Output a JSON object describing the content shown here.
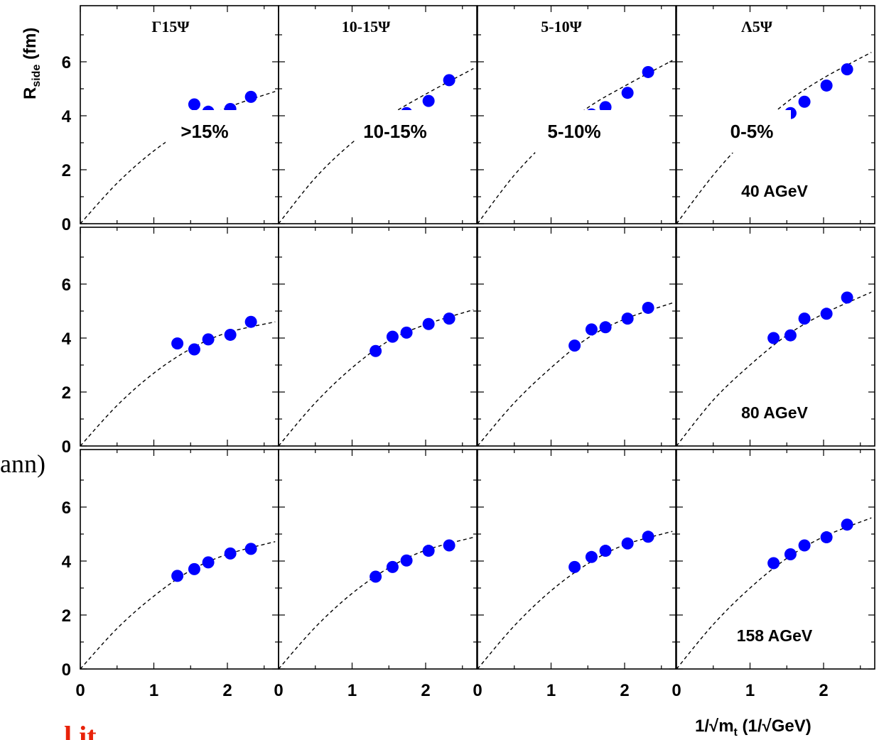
{
  "chart_data": {
    "type": "scatter",
    "ylabel": "R",
    "ylabel_sub": "side",
    "ylabel_unit": " (fm)",
    "xlabel_parts": [
      "1/√m",
      "t",
      " (1/√GeV)"
    ],
    "xlim": [
      0,
      2.65
    ],
    "ylim": [
      0,
      7.7
    ],
    "x_ticks": [
      "0",
      "1",
      "2"
    ],
    "y_ticks": [
      "0",
      "2",
      "4",
      "6"
    ],
    "grid": false,
    "column_titles": [
      "Γ15Ψ",
      "10-15Ψ",
      "5-10Ψ",
      "Λ5Ψ"
    ],
    "column_overlays": [
      ">15%",
      "10-15%",
      "5-10%",
      "0-5%"
    ],
    "row_labels": [
      "40 AGeV",
      "80 AGeV",
      "158 AGeV"
    ],
    "marker_color": "#0000ff",
    "fit_style": "dashed",
    "panels": [
      [
        {
          "x": [
            1.55,
            1.74,
            2.04,
            2.32
          ],
          "y": [
            4.42,
            4.15,
            4.25,
            4.7
          ],
          "fit": [
            [
              0,
              0
            ],
            [
              0.5,
              1.5
            ],
            [
              1.0,
              2.7
            ],
            [
              1.5,
              3.6
            ],
            [
              2.0,
              4.3
            ],
            [
              2.65,
              4.9
            ]
          ]
        },
        {
          "x": [
            1.74,
            2.04,
            2.32
          ],
          "y": [
            4.1,
            4.55,
            5.32
          ],
          "fit": [
            [
              0,
              0
            ],
            [
              0.5,
              1.7
            ],
            [
              1.0,
              3.0
            ],
            [
              1.5,
              4.0
            ],
            [
              2.0,
              4.8
            ],
            [
              2.65,
              5.75
            ]
          ]
        },
        {
          "x": [
            1.55,
            1.74,
            2.04,
            2.32
          ],
          "y": [
            4.05,
            4.32,
            4.85,
            5.62
          ],
          "fit": [
            [
              0,
              0
            ],
            [
              0.5,
              1.8
            ],
            [
              1.0,
              3.2
            ],
            [
              1.5,
              4.3
            ],
            [
              2.0,
              5.1
            ],
            [
              2.65,
              6.05
            ]
          ]
        },
        {
          "x": [
            1.55,
            1.74,
            2.04,
            2.32
          ],
          "y": [
            4.1,
            4.52,
            5.12,
            5.72
          ],
          "fit": [
            [
              0,
              0
            ],
            [
              0.5,
              1.8
            ],
            [
              1.0,
              3.3
            ],
            [
              1.5,
              4.5
            ],
            [
              2.0,
              5.4
            ],
            [
              2.65,
              6.35
            ]
          ]
        }
      ],
      [
        {
          "x": [
            1.32,
            1.55,
            1.74,
            2.04,
            2.32
          ],
          "y": [
            3.8,
            3.58,
            3.95,
            4.12,
            4.6
          ],
          "fit": [
            [
              0,
              0
            ],
            [
              0.5,
              1.5
            ],
            [
              1.0,
              2.7
            ],
            [
              1.5,
              3.6
            ],
            [
              2.0,
              4.2
            ],
            [
              2.65,
              4.6
            ]
          ]
        },
        {
          "x": [
            1.32,
            1.55,
            1.74,
            2.04,
            2.32
          ],
          "y": [
            3.52,
            4.05,
            4.2,
            4.52,
            4.72
          ],
          "fit": [
            [
              0,
              0
            ],
            [
              0.5,
              1.6
            ],
            [
              1.0,
              2.9
            ],
            [
              1.5,
              3.9
            ],
            [
              2.0,
              4.5
            ],
            [
              2.65,
              5.05
            ]
          ]
        },
        {
          "x": [
            1.32,
            1.55,
            1.74,
            2.04,
            2.32
          ],
          "y": [
            3.72,
            4.32,
            4.4,
            4.72,
            5.12
          ],
          "fit": [
            [
              0,
              0
            ],
            [
              0.5,
              1.6
            ],
            [
              1.0,
              2.9
            ],
            [
              1.5,
              4.0
            ],
            [
              2.0,
              4.7
            ],
            [
              2.65,
              5.3
            ]
          ]
        },
        {
          "x": [
            1.32,
            1.55,
            1.74,
            2.04,
            2.32
          ],
          "y": [
            4.0,
            4.1,
            4.72,
            4.9,
            5.5
          ],
          "fit": [
            [
              0,
              0
            ],
            [
              0.5,
              1.7
            ],
            [
              1.0,
              3.0
            ],
            [
              1.5,
              4.1
            ],
            [
              2.0,
              4.9
            ],
            [
              2.65,
              5.7
            ]
          ]
        }
      ],
      [
        {
          "x": [
            1.32,
            1.55,
            1.74,
            2.04,
            2.32
          ],
          "y": [
            3.45,
            3.7,
            3.95,
            4.28,
            4.45
          ],
          "fit": [
            [
              0,
              0
            ],
            [
              0.5,
              1.5
            ],
            [
              1.0,
              2.7
            ],
            [
              1.5,
              3.65
            ],
            [
              2.0,
              4.25
            ],
            [
              2.65,
              4.72
            ]
          ]
        },
        {
          "x": [
            1.32,
            1.55,
            1.74,
            2.04,
            2.32
          ],
          "y": [
            3.42,
            3.78,
            4.02,
            4.38,
            4.58
          ],
          "fit": [
            [
              0,
              0
            ],
            [
              0.5,
              1.55
            ],
            [
              1.0,
              2.8
            ],
            [
              1.5,
              3.75
            ],
            [
              2.0,
              4.4
            ],
            [
              2.65,
              4.88
            ]
          ]
        },
        {
          "x": [
            1.32,
            1.55,
            1.74,
            2.04,
            2.32
          ],
          "y": [
            3.78,
            4.15,
            4.38,
            4.65,
            4.9
          ],
          "fit": [
            [
              0,
              0
            ],
            [
              0.5,
              1.6
            ],
            [
              1.0,
              2.9
            ],
            [
              1.5,
              3.9
            ],
            [
              2.0,
              4.6
            ],
            [
              2.65,
              5.1
            ]
          ]
        },
        {
          "x": [
            1.32,
            1.55,
            1.74,
            2.04,
            2.32
          ],
          "y": [
            3.92,
            4.25,
            4.58,
            4.88,
            5.35
          ],
          "fit": [
            [
              0,
              0
            ],
            [
              0.5,
              1.65
            ],
            [
              1.0,
              3.0
            ],
            [
              1.5,
              4.1
            ],
            [
              2.0,
              4.9
            ],
            [
              2.65,
              5.6
            ]
          ]
        }
      ]
    ]
  },
  "fragments": {
    "left_text": "ann)",
    "bottom_red": "l it"
  }
}
